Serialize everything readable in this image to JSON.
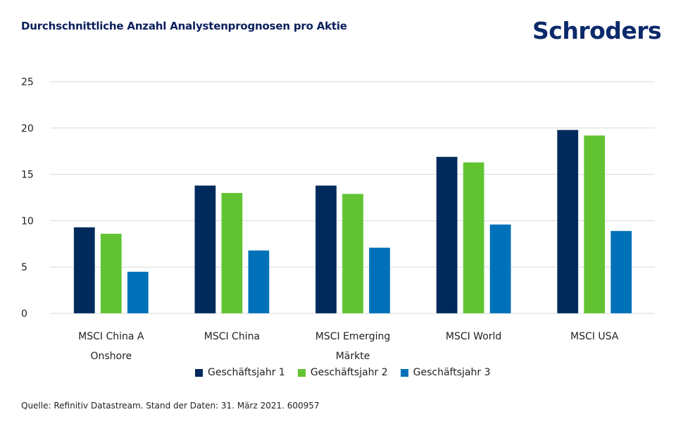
{
  "header": {
    "title": "Durchschnittliche Anzahl Analystenprognosen pro Aktie",
    "logo_text": "Schroders"
  },
  "footer": {
    "source": "Quelle: Refinitiv Datastream. Stand der Daten: 31. März 2021. 600957"
  },
  "chart_data": {
    "type": "bar",
    "title": "Durchschnittliche Anzahl Analystenprognosen pro Aktie",
    "xlabel": "",
    "ylabel": "",
    "ylim": [
      0,
      25
    ],
    "yticks": [
      0,
      5,
      10,
      15,
      20,
      25
    ],
    "grid": true,
    "legend_position": "bottom",
    "categories": [
      [
        "MSCI China A",
        "Onshore"
      ],
      [
        "MSCI China"
      ],
      [
        "MSCI Emerging",
        "Märkte"
      ],
      [
        "MSCI World"
      ],
      [
        "MSCI USA"
      ]
    ],
    "series": [
      {
        "name": "Geschäftsjahr 1",
        "color": "#002a5c",
        "values": [
          9.3,
          13.8,
          13.8,
          16.9,
          19.8
        ]
      },
      {
        "name": "Geschäftsjahr 2",
        "color": "#62c332",
        "values": [
          8.6,
          13.0,
          12.9,
          16.3,
          19.2
        ]
      },
      {
        "name": "Geschäftsjahr 3",
        "color": "#0071b9",
        "values": [
          4.5,
          6.8,
          7.1,
          9.6,
          8.9
        ]
      }
    ]
  }
}
